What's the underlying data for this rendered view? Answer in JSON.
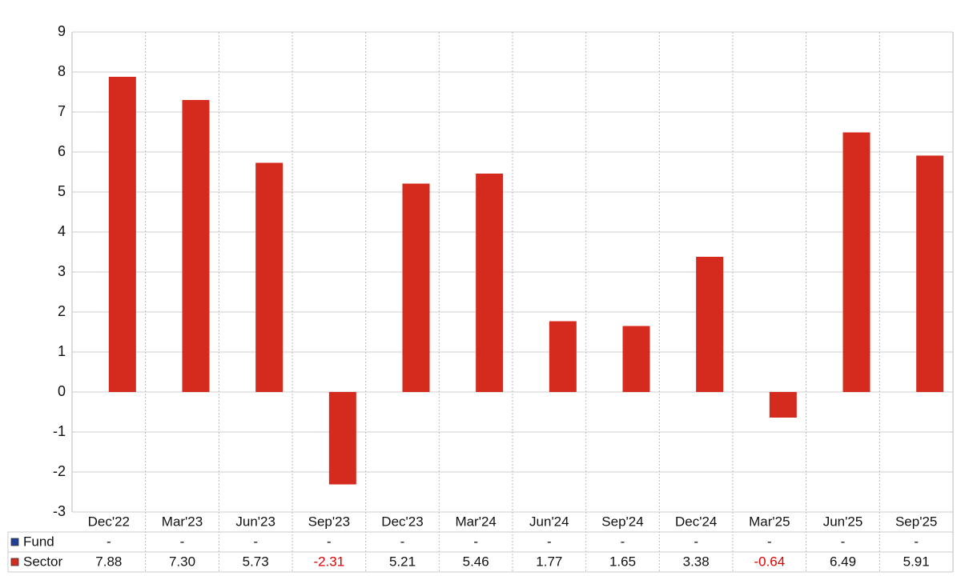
{
  "chart_data": {
    "type": "bar",
    "categories": [
      "Dec'22",
      "Mar'23",
      "Jun'23",
      "Sep'23",
      "Dec'23",
      "Mar'24",
      "Jun'24",
      "Sep'24",
      "Dec'24",
      "Mar'25",
      "Jun'25",
      "Sep'25"
    ],
    "series": [
      {
        "name": "Fund",
        "color": "#1f3f99",
        "values": [
          null,
          null,
          null,
          null,
          null,
          null,
          null,
          null,
          null,
          null,
          null,
          null
        ],
        "value_labels": [
          "-",
          "-",
          "-",
          "-",
          "-",
          "-",
          "-",
          "-",
          "-",
          "-",
          "-",
          "-"
        ]
      },
      {
        "name": "Sector",
        "color": "#d52b1e",
        "values": [
          7.88,
          7.3,
          5.73,
          -2.31,
          5.21,
          5.46,
          1.77,
          1.65,
          3.38,
          -0.64,
          6.49,
          5.91
        ],
        "value_labels": [
          "7.88",
          "7.30",
          "5.73",
          "-2.31",
          "5.21",
          "5.46",
          "1.77",
          "1.65",
          "3.38",
          "-0.64",
          "6.49",
          "5.91"
        ]
      }
    ],
    "ylim": [
      -3,
      9
    ],
    "yticks": [
      -3,
      -2,
      -1,
      0,
      1,
      2,
      3,
      4,
      5,
      6,
      7,
      8,
      9
    ],
    "grid": true
  }
}
